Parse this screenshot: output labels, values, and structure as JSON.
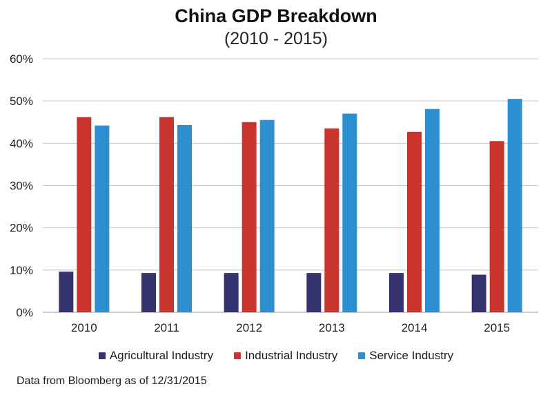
{
  "chart_data": {
    "type": "bar",
    "title": "China GDP Breakdown",
    "subtitle": "(2010 - 2015)",
    "categories": [
      "2010",
      "2011",
      "2012",
      "2013",
      "2014",
      "2015"
    ],
    "series": [
      {
        "name": "Agricultural Industry",
        "color": "#34336f",
        "values": [
          9.6,
          9.3,
          9.3,
          9.3,
          9.3,
          8.9
        ]
      },
      {
        "name": "Industrial Industry",
        "color": "#c9342f",
        "values": [
          46.2,
          46.2,
          45.0,
          43.5,
          42.7,
          40.5
        ]
      },
      {
        "name": "Service Industry",
        "color": "#2b8fd0",
        "values": [
          44.2,
          44.3,
          45.5,
          47.0,
          48.1,
          50.5
        ]
      }
    ],
    "ylim": [
      0,
      60
    ],
    "yticks": [
      "0%",
      "10%",
      "20%",
      "30%",
      "40%",
      "50%",
      "60%"
    ],
    "ytick_values": [
      0,
      10,
      20,
      30,
      40,
      50,
      60
    ],
    "grid": true,
    "legend_position": "bottom"
  },
  "footnote": "Data from Bloomberg as of 12/31/2015"
}
